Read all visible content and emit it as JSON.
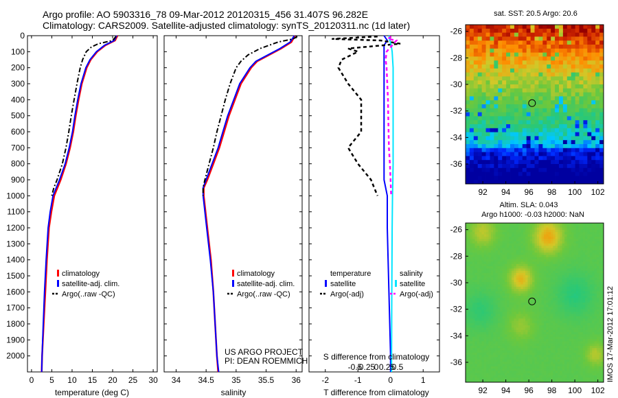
{
  "header": {
    "line1": "Argo profile: AO 5903316_78 09-Mar-2012 20120315_456 31.407S 96.282E",
    "line2": "Climatology: CARS2009. Satellite-adjusted climatology: synTS_20120311.nc (1d later)"
  },
  "footer": {
    "project": "US ARGO PROJECT",
    "pi": "PI: DEAN ROEMMICH",
    "stamp": "IMOS 17-Mar-2012 17:01:12"
  },
  "colors": {
    "climatology": "#ff0000",
    "satellite": "#0000ff",
    "argo": "#000000",
    "salinity_sat": "#00e5ff",
    "salinity_argo": "#ff00ff"
  },
  "chart_data": [
    {
      "type": "line",
      "id": "temperature",
      "xlabel": "temperature (deg C)",
      "xlim": [
        -1,
        31
      ],
      "ylim": [
        2100,
        0
      ],
      "xticks": [
        0,
        5,
        10,
        15,
        20,
        25,
        30
      ],
      "yticks": [
        0,
        100,
        200,
        300,
        400,
        500,
        600,
        700,
        800,
        900,
        1000,
        1100,
        1200,
        1300,
        1400,
        1500,
        1600,
        1700,
        1800,
        1900,
        2000
      ],
      "legend": [
        "climatology",
        "satellite-adj. clim.",
        "Argo(..raw -QC)"
      ],
      "series": [
        {
          "name": "climatology",
          "depth": [
            0,
            30,
            60,
            100,
            150,
            200,
            300,
            400,
            500,
            600,
            700,
            800,
            900,
            1000,
            1100,
            1200,
            1400,
            1600,
            1800,
            2000,
            2100
          ],
          "values": [
            21.2,
            20.6,
            18.2,
            16.2,
            14.6,
            13.6,
            12.4,
            11.6,
            10.9,
            10.3,
            9.5,
            8.5,
            7.2,
            5.6,
            4.9,
            4.3,
            3.8,
            3.4,
            3.0,
            2.6,
            2.5
          ]
        },
        {
          "name": "satellite",
          "depth": [
            0,
            30,
            60,
            100,
            150,
            200,
            300,
            400,
            500,
            600,
            700,
            800,
            900,
            1000,
            1100,
            1200,
            1400,
            1600,
            1800,
            2000,
            2100
          ],
          "values": [
            21.0,
            20.4,
            18.0,
            16.0,
            14.4,
            13.4,
            12.2,
            11.4,
            10.7,
            10.1,
            9.3,
            8.3,
            6.9,
            5.3,
            4.6,
            4.1,
            3.6,
            3.2,
            2.9,
            2.6,
            2.5
          ]
        },
        {
          "name": "argo",
          "depth": [
            5,
            30,
            50,
            70,
            100,
            150,
            200,
            300,
            400,
            500,
            600,
            700,
            800,
            900,
            950,
            1000
          ],
          "values": [
            20.8,
            20.0,
            16.5,
            14.8,
            13.5,
            12.6,
            12.0,
            11.2,
            10.5,
            9.8,
            9.2,
            8.5,
            7.6,
            6.3,
            5.5,
            5.0
          ]
        }
      ]
    },
    {
      "type": "line",
      "id": "salinity",
      "xlabel": "salinity",
      "xlim": [
        33.8,
        36.1
      ],
      "ylim": [
        2100,
        0
      ],
      "xticks": [
        34,
        34.5,
        35,
        35.5,
        36
      ],
      "xticklabels": [
        "34",
        "34.5",
        "35",
        "35.5",
        "36"
      ],
      "legend": [
        "climatology",
        "satellite-adj. clim.",
        "Argo(..raw -QC)"
      ],
      "series": [
        {
          "name": "climatology",
          "depth": [
            0,
            40,
            80,
            120,
            160,
            200,
            300,
            400,
            500,
            600,
            700,
            800,
            900,
            950,
            1000,
            1200,
            1400,
            1600,
            1800,
            2000,
            2100
          ],
          "values": [
            35.98,
            35.92,
            35.75,
            35.55,
            35.35,
            35.25,
            35.08,
            34.98,
            34.88,
            34.8,
            34.72,
            34.62,
            34.52,
            34.46,
            34.46,
            34.52,
            34.58,
            34.62,
            34.65,
            34.68,
            34.7
          ]
        },
        {
          "name": "satellite",
          "depth": [
            0,
            40,
            80,
            120,
            160,
            200,
            300,
            400,
            500,
            600,
            700,
            800,
            900,
            950,
            1000,
            1200,
            1400,
            1600,
            1800,
            2000,
            2100
          ],
          "values": [
            35.97,
            35.9,
            35.73,
            35.53,
            35.33,
            35.23,
            35.06,
            34.96,
            34.86,
            34.78,
            34.7,
            34.6,
            34.5,
            34.45,
            34.45,
            34.51,
            34.57,
            34.62,
            34.65,
            34.68,
            34.71
          ]
        },
        {
          "name": "argo",
          "depth": [
            5,
            20,
            40,
            60,
            80,
            120,
            160,
            200,
            300,
            400,
            500,
            600,
            700,
            800,
            900,
            950,
            1000
          ],
          "values": [
            36.02,
            35.95,
            35.7,
            35.55,
            35.4,
            35.2,
            35.08,
            35.0,
            34.9,
            34.82,
            34.75,
            34.68,
            34.62,
            34.55,
            34.48,
            34.45,
            34.45
          ]
        }
      ]
    },
    {
      "type": "line",
      "id": "difference",
      "xlabel": "T difference from climatology",
      "xlabel_top": "S difference from climatology",
      "xlim": [
        -2.5,
        1.5
      ],
      "ylim": [
        2100,
        0
      ],
      "xticks": [
        -2,
        -1,
        0,
        1
      ],
      "xticklabels": [
        "-2",
        "-1",
        "0",
        "1"
      ],
      "sticks": [
        -0.5,
        -0.25,
        0,
        0.25,
        0.5
      ],
      "sticklabels": [
        "-0.5",
        "-0.25",
        "0",
        "0.25",
        "0.5"
      ],
      "legend_groups": {
        "temperature": "temperature",
        "salinity": "salinity"
      },
      "legend": [
        "satellite",
        "Argo(-adj)",
        "satellite",
        "Argo(-adj)"
      ],
      "series": [
        {
          "name": "T satellite",
          "depth": [
            0,
            30,
            60,
            100,
            200,
            300,
            400,
            500,
            600,
            700,
            800,
            900,
            1000,
            1200,
            1600,
            2000,
            2100
          ],
          "values": [
            -0.2,
            -0.1,
            -0.2,
            -0.2,
            -0.2,
            -0.2,
            -0.2,
            -0.2,
            -0.2,
            -0.2,
            -0.2,
            -0.2,
            -0.1,
            -0.1,
            -0.05,
            0,
            0
          ]
        },
        {
          "name": "T argo",
          "depth": [
            5,
            20,
            30,
            50,
            80,
            100,
            150,
            200,
            300,
            400,
            500,
            600,
            700,
            800,
            900,
            950,
            1000
          ],
          "values": [
            -0.4,
            -1.8,
            -0.3,
            0.3,
            -1.3,
            -1.0,
            -1.5,
            -1.6,
            -1.3,
            -0.9,
            -0.9,
            -0.9,
            -1.3,
            -1.0,
            -0.6,
            -0.5,
            -0.4
          ]
        },
        {
          "name": "S satellite",
          "depth": [
            0,
            30,
            60,
            100,
            200,
            300,
            400,
            500,
            600,
            700,
            800,
            900,
            1000,
            1200,
            1600,
            2000,
            2100
          ],
          "values": [
            -0.05,
            -0.02,
            0.02,
            0.05,
            0.08,
            0.08,
            0.08,
            0.08,
            0.08,
            0.08,
            0.08,
            0.07,
            0.06,
            0.05,
            0.04,
            0.03,
            0.03
          ]
        },
        {
          "name": "S argo",
          "depth": [
            5,
            20,
            30,
            60,
            100,
            150,
            200,
            300,
            400,
            500,
            600,
            700,
            800,
            900,
            950,
            1000
          ],
          "values": [
            0.02,
            -0.08,
            0.18,
            0.05,
            -0.12,
            -0.15,
            -0.12,
            -0.1,
            -0.08,
            -0.07,
            -0.06,
            -0.05,
            -0.02,
            0.0,
            0.01,
            0.02
          ]
        }
      ]
    },
    {
      "type": "heatmap",
      "id": "sst_map",
      "title": "sat. SST: 20.5 Argo: 20.6",
      "xlim": [
        90.5,
        102.5
      ],
      "ylim": [
        -37.5,
        -25.5
      ],
      "xticks": [
        92,
        94,
        96,
        98,
        100,
        102
      ],
      "yticks": [
        -26,
        -28,
        -30,
        -32,
        -34,
        -36
      ],
      "marker": [
        96.28,
        -31.41
      ]
    },
    {
      "type": "heatmap",
      "id": "sla_map",
      "title_line1": "Altim. SLA: 0.043",
      "title_line2": "Argo h1000: -0.03 h2000: NaN",
      "xlim": [
        90.5,
        102.5
      ],
      "ylim": [
        -37.5,
        -25.5
      ],
      "xticks": [
        92,
        94,
        96,
        98,
        100,
        102
      ],
      "yticks": [
        -26,
        -28,
        -30,
        -32,
        -34,
        -36
      ],
      "marker": [
        96.28,
        -31.41
      ]
    }
  ]
}
